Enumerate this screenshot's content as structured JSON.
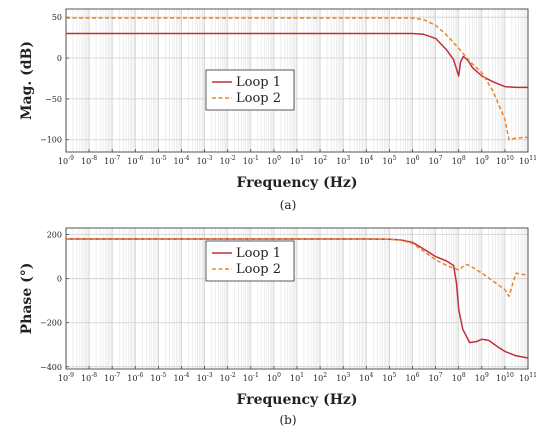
{
  "colors": {
    "loop1": "#c0303a",
    "loop2": "#e8852a",
    "grid": "#cfcfcf",
    "axis": "#444444"
  },
  "chart_data": [
    {
      "type": "line",
      "xscale": "log",
      "xlim": [
        1e-09,
        100000000000.0
      ],
      "ylim": [
        -115,
        60
      ],
      "x_exponents": [
        -9,
        -8,
        -7,
        -6,
        -5,
        -4,
        -3,
        -2,
        -1,
        0,
        1,
        2,
        3,
        4,
        5,
        6,
        7,
        8,
        9,
        10,
        11
      ],
      "yticks": [
        -100,
        -50,
        0,
        50
      ],
      "xlabel": "Frequency (Hz)",
      "ylabel": "Mag. (dB)",
      "caption": "(a)",
      "legend": "center-left",
      "grid": true,
      "series": [
        {
          "name": "Loop 1",
          "style": "solid",
          "x": [
            1e-09,
            100000.0,
            1000000.0,
            3000000.0,
            10000000.0,
            30000000.0,
            60000000.0,
            100000000.0,
            120000000.0,
            160000000.0,
            250000000.0,
            400000000.0,
            1000000000.0,
            3000000000.0,
            10000000000.0,
            30000000000.0,
            100000000000.0
          ],
          "y": [
            30,
            30,
            30,
            29,
            24,
            10,
            -2,
            -22,
            -5,
            2,
            -3,
            -12,
            -22,
            -29,
            -35,
            -36,
            -36
          ]
        },
        {
          "name": "Loop 2",
          "style": "dashed",
          "x": [
            1e-09,
            100000.0,
            1000000.0,
            3000000.0,
            10000000.0,
            30000000.0,
            100000000.0,
            300000000.0,
            1000000000.0,
            3000000000.0,
            10000000000.0,
            15000000000.0,
            30000000000.0,
            100000000000.0
          ],
          "y": [
            49,
            49,
            49,
            47,
            40,
            28,
            12,
            -4,
            -18,
            -40,
            -75,
            -100,
            -98,
            -97
          ]
        }
      ]
    },
    {
      "type": "line",
      "xscale": "log",
      "xlim": [
        1e-09,
        100000000000.0
      ],
      "ylim": [
        -410,
        230
      ],
      "x_exponents": [
        -9,
        -8,
        -7,
        -6,
        -5,
        -4,
        -3,
        -2,
        -1,
        0,
        1,
        2,
        3,
        4,
        5,
        6,
        7,
        8,
        9,
        10,
        11
      ],
      "yticks": [
        -400,
        -200,
        0,
        200
      ],
      "xlabel": "Frequency (Hz)",
      "ylabel": "Phase (°)",
      "caption": "(b)",
      "legend": "upper-center",
      "grid": true,
      "series": [
        {
          "name": "Loop 1",
          "style": "solid",
          "x": [
            1e-09,
            10000.0,
            100000.0,
            300000.0,
            1000000.0,
            3000000.0,
            10000000.0,
            30000000.0,
            60000000.0,
            80000000.0,
            100000000.0,
            150000000.0,
            300000000.0,
            600000000.0,
            1000000000.0,
            2000000000.0,
            5000000000.0,
            10000000000.0,
            30000000000.0,
            100000000000.0
          ],
          "y": [
            180,
            180,
            179,
            176,
            165,
            135,
            100,
            80,
            60,
            -20,
            -140,
            -230,
            -290,
            -285,
            -275,
            -280,
            -310,
            -330,
            -350,
            -360
          ]
        },
        {
          "name": "Loop 2",
          "style": "dashed",
          "x": [
            1e-09,
            10000.0,
            100000.0,
            300000.0,
            1000000.0,
            3000000.0,
            10000000.0,
            30000000.0,
            100000000.0,
            200000000.0,
            300000000.0,
            1000000000.0,
            3000000000.0,
            10000000000.0,
            15000000000.0,
            30000000000.0,
            100000000000.0
          ],
          "y": [
            180,
            180,
            179,
            175,
            160,
            125,
            85,
            60,
            40,
            65,
            60,
            25,
            -10,
            -50,
            -80,
            25,
            15
          ]
        }
      ]
    }
  ]
}
